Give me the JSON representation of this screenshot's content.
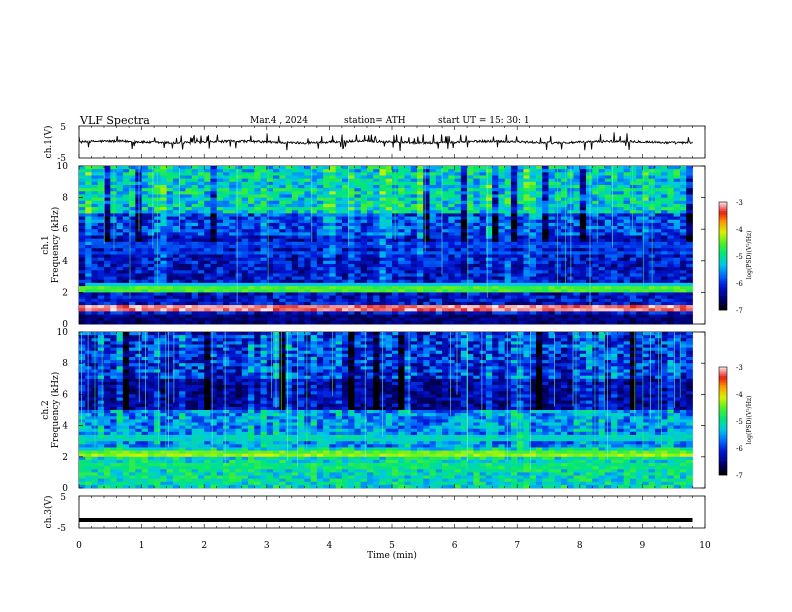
{
  "header": {
    "title": "VLF  Spectra",
    "date": "Mar.4  , 2024",
    "station": "station= ATH",
    "start": "start  UT  =   15: 30: 1"
  },
  "chart_data": [
    {
      "type": "line",
      "panel": "ch1-voltage",
      "ylabel": "ch.1(V)",
      "yticks": [
        "5",
        "-5"
      ],
      "ylim": [
        -5,
        5
      ],
      "xlim": [
        0,
        10
      ],
      "series": [
        {
          "baseline": 0.0,
          "noise_amplitude": 0.6,
          "spike_amplitude": 2.5
        }
      ]
    },
    {
      "type": "heatmap",
      "panel": "ch1-spectrogram",
      "ylabel_line1": "ch.1",
      "ylabel_line2": "Frequency  (kHz)",
      "yticks": [
        "10",
        "8",
        "6",
        "4",
        "2",
        "0"
      ],
      "ylim": [
        0,
        10
      ],
      "xlim": [
        0,
        9.8
      ],
      "colorbar": {
        "label": "log(PSD)(V²/Hz)",
        "ticks": [
          "-3",
          "-4",
          "-5",
          "-6",
          "-7"
        ],
        "range": [
          -7,
          -3
        ]
      },
      "bands_khz": [
        {
          "freq": 2.2,
          "level": -4.6
        },
        {
          "freq": 2.3,
          "level": -4.8
        },
        {
          "freq": 1.0,
          "level": -3.2
        },
        {
          "freq": 1.1,
          "level": -3.4
        },
        {
          "freq": 4.5,
          "level": -5.9
        },
        {
          "freq": 5.0,
          "level": -6.0
        }
      ]
    },
    {
      "type": "heatmap",
      "panel": "ch2-spectrogram",
      "ylabel_line1": "ch.2",
      "ylabel_line2": "Frequency  (kHz)",
      "yticks": [
        "10",
        "8",
        "6",
        "4",
        "2",
        "0"
      ],
      "ylim": [
        0,
        10
      ],
      "xlim": [
        0,
        9.8
      ],
      "colorbar": {
        "label": "log(PSD)(V²/Hz)",
        "ticks": [
          "-3",
          "-4",
          "-5",
          "-6",
          "-7"
        ],
        "range": [
          -7,
          -3
        ]
      },
      "bands_khz": [
        {
          "freq": 2.1,
          "level": -4.3
        },
        {
          "freq": 2.2,
          "level": -4.5
        },
        {
          "freq": 3.2,
          "level": -5.2
        },
        {
          "freq": 1.4,
          "level": -5.0
        }
      ]
    },
    {
      "type": "line",
      "panel": "ch3-voltage",
      "ylabel": "ch.3(V)",
      "yticks": [
        "5",
        "-5"
      ],
      "ylim": [
        -5,
        5
      ],
      "xlim": [
        0,
        10
      ],
      "series": [
        {
          "baseline": -2.5,
          "noise_amplitude": 0.0
        }
      ]
    }
  ],
  "x_axis": {
    "label": "Time  (min)",
    "ticks": [
      "0",
      "1",
      "2",
      "3",
      "4",
      "5",
      "6",
      "7",
      "8",
      "9",
      "10"
    ],
    "range": [
      0,
      10
    ]
  }
}
